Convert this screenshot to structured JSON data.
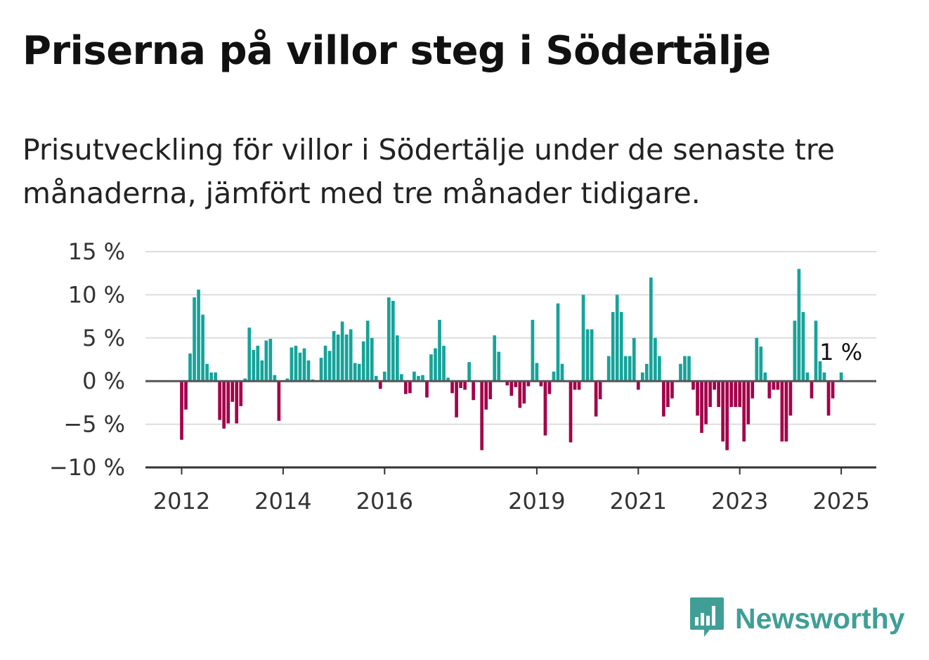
{
  "title": "Priserna på villor steg i Södertälje",
  "subtitle": "Prisutveckling för villor i Södertälje under de senaste tre månaderna, jämfört med tre månader tidigare.",
  "brand": {
    "name": "Newsworthy",
    "icon": "newsworthy-logo-icon"
  },
  "colors": {
    "positive": "#16a39a",
    "negative": "#a3004a",
    "grid": "#dddddd",
    "axis": "#555555",
    "brand": "#3f9f97"
  },
  "chart_data": {
    "type": "bar",
    "y_unit": "%",
    "ylim": [
      -10,
      15
    ],
    "y_ticks": [
      -10,
      -5,
      0,
      5,
      10,
      15
    ],
    "y_tick_labels": [
      "−10 %",
      "−5 %",
      "0 %",
      "5 %",
      "10 %",
      "15 %"
    ],
    "x_ticks": [
      2012,
      2014,
      2016,
      2019,
      2021,
      2023,
      2025
    ],
    "x_tick_labels": [
      "2012",
      "2014",
      "2016",
      "2019",
      "2021",
      "2023",
      "2025"
    ],
    "grid": true,
    "last_value_label": "1 %",
    "start": "2012-01",
    "frequency": "monthly",
    "values": [
      -6.8,
      -3.3,
      3.2,
      9.7,
      10.6,
      7.7,
      2,
      1,
      1,
      -4.5,
      -5.5,
      -4.9,
      -2.4,
      -4.9,
      -2.9,
      0.3,
      6.2,
      3.6,
      4.1,
      2.4,
      4.7,
      4.9,
      0.7,
      -4.6,
      0,
      0.3,
      3.9,
      4.1,
      3.3,
      3.8,
      2.4,
      0.2,
      0,
      2.7,
      4.1,
      3.5,
      5.8,
      5.4,
      6.9,
      5.4,
      6,
      2.1,
      2,
      4.6,
      7,
      5,
      0.6,
      -0.9,
      1.1,
      9.7,
      9.3,
      5.3,
      0.8,
      -1.5,
      -1.4,
      1.1,
      0.6,
      0.7,
      -1.9,
      3.1,
      3.8,
      7.1,
      4.1,
      0.4,
      -1.4,
      -4.2,
      -0.8,
      -1,
      2.2,
      -2.2,
      0,
      -8,
      -3.3,
      -2.1,
      5.3,
      3.4,
      0,
      -0.5,
      -1.7,
      -0.7,
      -3.1,
      -2.6,
      -0.6,
      7.1,
      2.1,
      -0.6,
      -6.3,
      -1.5,
      1.1,
      9,
      2,
      0,
      -7.1,
      -1,
      -1,
      10,
      6,
      6,
      -4.1,
      -2.1,
      0,
      2.9,
      8,
      10,
      8,
      2.9,
      2.9,
      5,
      -1,
      1,
      2,
      12,
      5,
      2.9,
      -4.1,
      -3,
      -2,
      0,
      2,
      2.9,
      2.9,
      -1,
      -4,
      -6,
      -5,
      -3,
      -1,
      -3,
      -7,
      -8,
      -3,
      -3,
      -3,
      -7,
      -5,
      -2,
      5,
      4,
      1,
      -2,
      -1,
      -1,
      -7,
      -7,
      -4,
      7,
      13,
      8,
      1,
      -2,
      7,
      2.3,
      1,
      -4,
      -2,
      0,
      1
    ]
  }
}
